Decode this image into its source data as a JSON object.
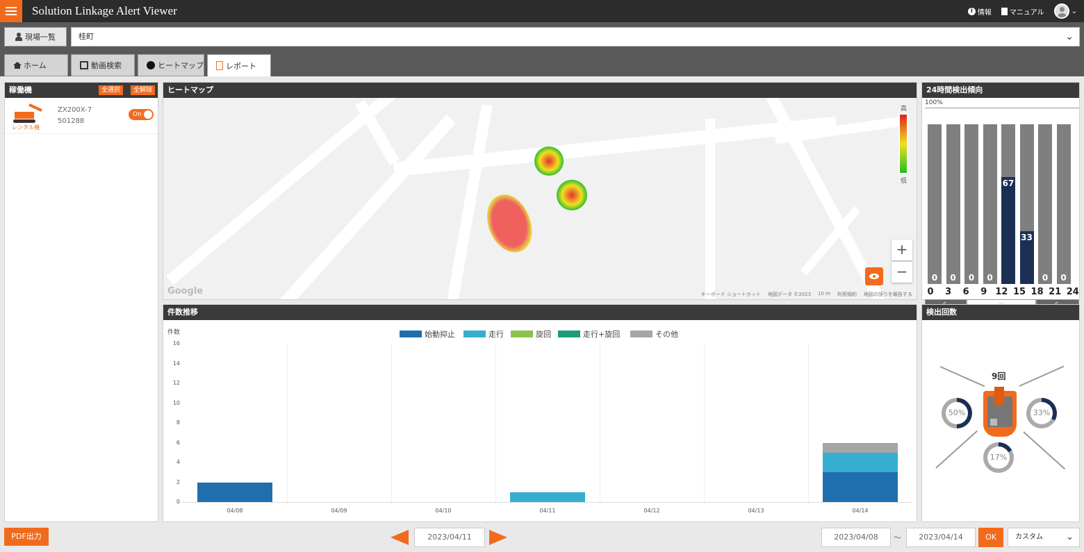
{
  "app": {
    "title": "Solution Linkage Alert Viewer"
  },
  "header": {
    "info_label": "情報",
    "manual_label": "マニュアル",
    "chevron": "⌄"
  },
  "site": {
    "button_label": "現場一覧",
    "selected_site": "桂町",
    "dropdown_glyph": "⌄"
  },
  "tabs": [
    {
      "label": "ホーム",
      "icon": "home-icon"
    },
    {
      "label": "動画検索",
      "icon": "film-icon"
    },
    {
      "label": "ヒートマップ",
      "icon": "dot-icon"
    },
    {
      "label": "レポート",
      "icon": "report-icon",
      "active": true
    }
  ],
  "machines_panel": {
    "title": "稼働機",
    "select_all": "全選択",
    "deselect_all": "全解除",
    "items": [
      {
        "model": "ZX200X-7",
        "serial": "501288",
        "tag": "レンタル機",
        "toggle": "On"
      }
    ]
  },
  "heatmap": {
    "title": "ヒートマップ",
    "legend_high": "高",
    "legend_low": "低",
    "zoom_in": "+",
    "zoom_out": "−",
    "google": "Google",
    "attribution": [
      "キーボード ショートカット",
      "地図データ ©2023",
      "10 m",
      "利用規約",
      "地図の誤りを報告する"
    ]
  },
  "hourly": {
    "title": "24時間検出傾向",
    "max_label": "100%",
    "values": [
      0,
      0,
      0,
      0,
      67,
      33,
      0,
      0
    ],
    "ticks": [
      "0",
      "3",
      "6",
      "9",
      "12",
      "15",
      "18",
      "21",
      "24"
    ],
    "night_icon": "☾",
    "day_icon": "☀"
  },
  "trend": {
    "title": "件数推移",
    "y_label": "件数"
  },
  "chart_data": {
    "type": "bar",
    "stacked": true,
    "categories": [
      "04/08",
      "04/09",
      "04/10",
      "04/11",
      "04/12",
      "04/13",
      "04/14"
    ],
    "series": [
      {
        "name": "始動抑止",
        "color": "#1f6fae",
        "values": [
          2,
          0,
          0,
          0,
          0,
          0,
          3
        ]
      },
      {
        "name": "走行",
        "color": "#35aed0",
        "values": [
          0,
          0,
          0,
          1,
          0,
          0,
          2
        ]
      },
      {
        "name": "旋回",
        "color": "#8bc34a",
        "values": [
          0,
          0,
          0,
          0,
          0,
          0,
          0
        ]
      },
      {
        "name": "走行+旋回",
        "color": "#1e9b7a",
        "values": [
          0,
          0,
          0,
          0,
          0,
          0,
          0
        ]
      },
      {
        "name": "その他",
        "color": "#a6a6a6",
        "values": [
          0,
          0,
          0,
          0,
          0,
          0,
          1
        ]
      }
    ],
    "ylim": [
      0,
      16
    ],
    "yticks": [
      "0",
      "2",
      "4",
      "6",
      "8",
      "10",
      "12",
      "14",
      "16"
    ],
    "ylabel": "件数",
    "xlabel": "",
    "grid": true,
    "legend": "top-center"
  },
  "detection": {
    "title": "検出回数",
    "total": "9回",
    "rings": [
      {
        "label": "50%",
        "value": 0.5
      },
      {
        "label": "33%",
        "value": 0.33
      },
      {
        "label": "17%",
        "value": 0.17
      }
    ]
  },
  "footer": {
    "pdf_label": "PDF出力",
    "current_date": "2023/04/11",
    "range_start": "2023/04/08",
    "range_sep": "～",
    "range_end": "2023/04/14",
    "ok_label": "OK",
    "range_mode": "カスタム",
    "dropdown_glyph": "⌄"
  },
  "colors": {
    "accent": "#f26b1d",
    "dark_header": "#3a3a3a",
    "navy": "#1b2f55"
  }
}
